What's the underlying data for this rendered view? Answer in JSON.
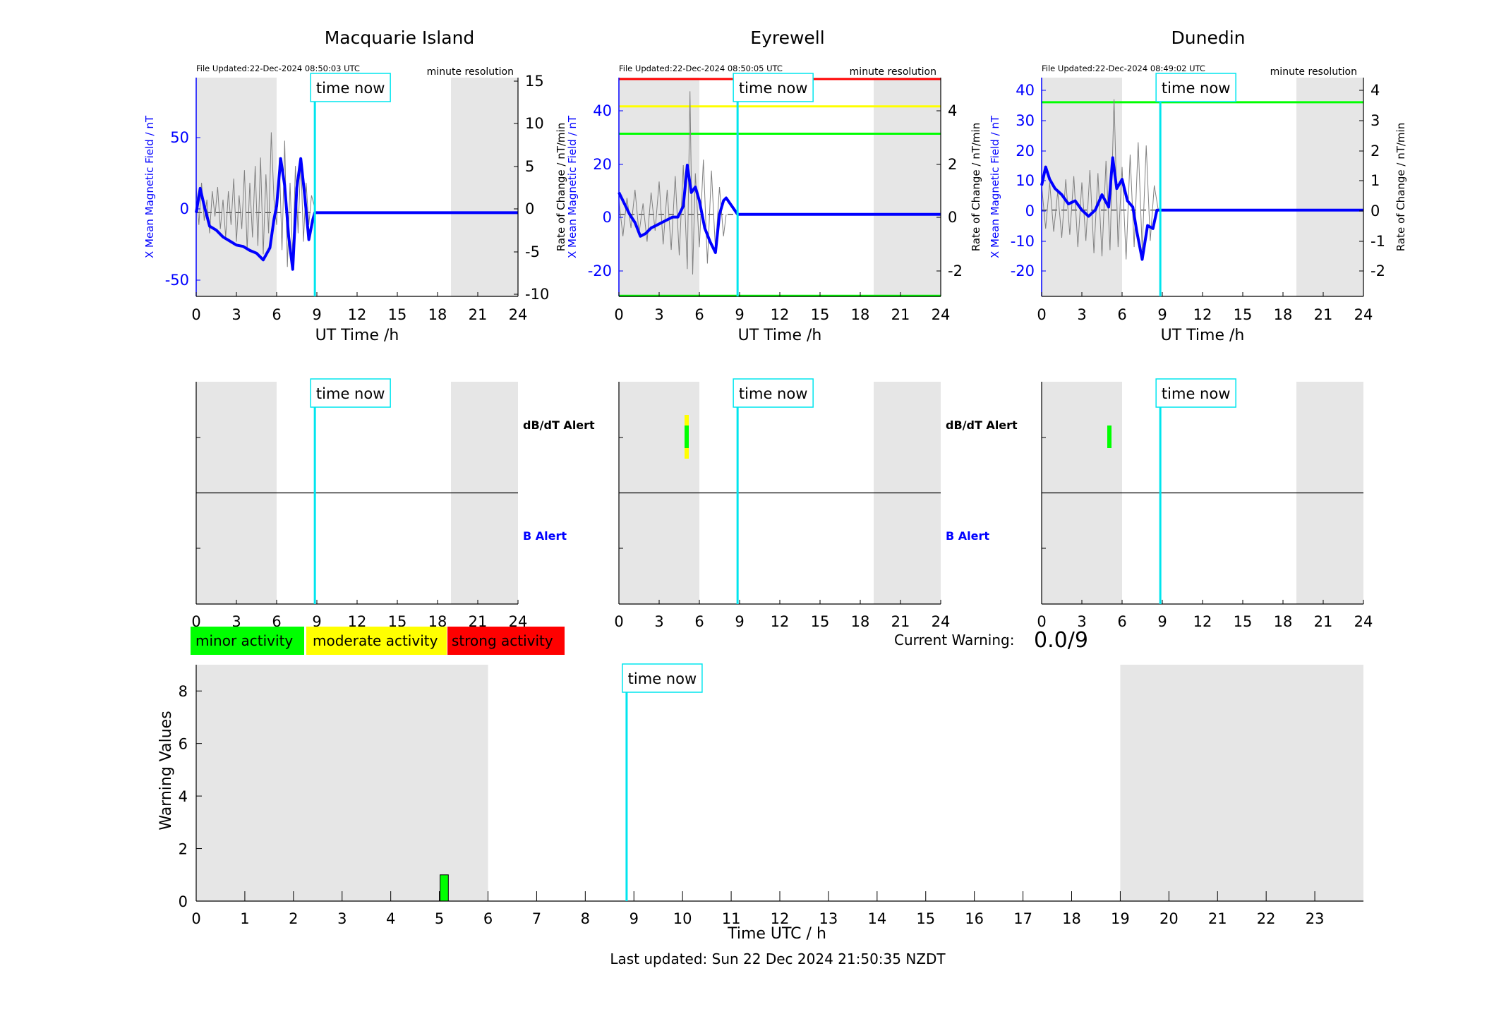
{
  "last_updated": "Last updated: Sun 22 Dec 2024 21:50:35 NZDT",
  "time_now_label": "time now",
  "time_now_hour": 8.85,
  "common": {
    "xlabel_top": "UT Time /h",
    "ylabel_left": "X Mean Magnetic Field / nT",
    "ylabel_right": "Rate of Change / nT/min",
    "resolution": "minute resolution",
    "xticks": [
      "0",
      "3",
      "6",
      "9",
      "12",
      "15",
      "18",
      "21",
      "24"
    ],
    "dbdt_alert": "dB/dT Alert",
    "b_alert": "B Alert",
    "shade_ranges": [
      [
        0,
        6
      ],
      [
        19,
        24
      ]
    ]
  },
  "colors": {
    "field": "#0000ff",
    "rate": "#808080",
    "time_now": "#00e5ee",
    "minor": "#00ff00",
    "moderate": "#ffff00",
    "strong": "#ff0000",
    "shade": "#e6e6e6"
  },
  "stations": [
    {
      "name": "Macquarie Island",
      "file_updated": "File Updated:22-Dec-2024 08:50:03 UTC",
      "left_ticks": [
        "50",
        "0",
        "-50"
      ],
      "right_ticks": [
        "15",
        "10",
        "5",
        "0",
        "-5",
        "-10"
      ]
    },
    {
      "name": "Eyrewell",
      "file_updated": "File Updated:22-Dec-2024 08:50:05 UTC",
      "left_ticks": [
        "40",
        "20",
        "0",
        "-20"
      ],
      "right_ticks": [
        "4",
        "2",
        "0",
        "-2"
      ]
    },
    {
      "name": "Dunedin",
      "file_updated": "File Updated:22-Dec-2024 08:49:02 UTC",
      "left_ticks": [
        "40",
        "30",
        "20",
        "10",
        "0",
        "-10",
        "-20"
      ],
      "right_ticks": [
        "4",
        "3",
        "2",
        "1",
        "0",
        "-1",
        "-2"
      ]
    }
  ],
  "legend": {
    "minor": "minor activity",
    "moderate": "moderate activity",
    "strong": "strong activity"
  },
  "current_warning_label": "Current Warning:",
  "current_warning_value": "0.0/9",
  "chart_data": [
    {
      "type": "line",
      "station": "Macquarie Island",
      "x_range": [
        0,
        24
      ],
      "ylim_left": [
        -62,
        100
      ],
      "ylim_right": [
        -10.5,
        15.5
      ],
      "field_x": [
        0,
        0.3,
        0.6,
        1.0,
        1.5,
        2.0,
        2.5,
        3.0,
        3.5,
        4.0,
        4.5,
        5.0,
        5.5,
        5.8,
        6.0,
        6.3,
        6.6,
        6.9,
        7.2,
        7.5,
        7.8,
        8.1,
        8.4,
        8.7,
        8.85,
        24
      ],
      "field_y": [
        0,
        18,
        5,
        -10,
        -13,
        -18,
        -21,
        -24,
        -25,
        -28,
        -30,
        -35,
        -26,
        -5,
        5,
        40,
        20,
        -18,
        -42,
        18,
        40,
        12,
        -20,
        -5,
        0,
        0
      ],
      "rate_x": [
        0.0,
        0.2,
        0.4,
        0.6,
        0.8,
        1.0,
        1.2,
        1.4,
        1.6,
        1.8,
        2.0,
        2.2,
        2.4,
        2.6,
        2.8,
        3.0,
        3.2,
        3.4,
        3.6,
        3.8,
        4.0,
        4.2,
        4.4,
        4.6,
        4.8,
        5.0,
        5.2,
        5.4,
        5.6,
        5.8,
        6.0,
        6.2,
        6.4,
        6.6,
        6.8,
        7.0,
        7.2,
        7.4,
        7.6,
        7.8,
        8.0,
        8.2,
        8.4,
        8.6,
        8.85
      ],
      "rate_y": [
        2.5,
        -2.0,
        3.0,
        -1.5,
        1.0,
        -3.0,
        2.0,
        -1.0,
        2.5,
        -2.5,
        1.0,
        -3.5,
        2.0,
        -2.0,
        3.5,
        -4.0,
        1.5,
        -2.5,
        4.5,
        -5.0,
        3.0,
        -3.5,
        5.0,
        -4.5,
        6.0,
        -5.5,
        4.0,
        -3.0,
        9.0,
        1.0,
        -2.0,
        6.0,
        -5.0,
        8.0,
        -7.0,
        3.0,
        -6.0,
        5.0,
        -3.0,
        6.0,
        -4.0,
        3.0,
        -2.0,
        1.5,
        0
      ]
    },
    {
      "type": "line",
      "station": "Eyrewell",
      "x_range": [
        0,
        24
      ],
      "ylim_left": [
        -30,
        50
      ],
      "ylim_right": [
        -3,
        5
      ],
      "threshold_lines": [
        {
          "y": 49.5,
          "color": "red"
        },
        {
          "y": 39.5,
          "color": "yellow"
        },
        {
          "y": 29.5,
          "color": "green"
        },
        {
          "y": -29.8,
          "color": "green"
        }
      ],
      "field_x": [
        0,
        0.4,
        0.8,
        1.2,
        1.6,
        2.0,
        2.4,
        2.8,
        3.2,
        3.6,
        4.0,
        4.4,
        4.8,
        5.1,
        5.4,
        5.7,
        6.0,
        6.4,
        6.8,
        7.2,
        7.5,
        7.8,
        8.0,
        8.85,
        24
      ],
      "field_y": [
        8,
        4,
        0,
        -3,
        -8,
        -7,
        -5,
        -4,
        -3,
        -2,
        -1,
        -1,
        3,
        18,
        8,
        10,
        5,
        -5,
        -10,
        -14,
        0,
        5,
        6,
        0,
        0
      ],
      "rate_x": [
        0.0,
        0.3,
        0.6,
        0.9,
        1.2,
        1.5,
        1.8,
        2.1,
        2.4,
        2.7,
        3.0,
        3.3,
        3.6,
        3.9,
        4.2,
        4.5,
        4.8,
        5.1,
        5.3,
        5.5,
        5.7,
        6.0,
        6.3,
        6.6,
        6.9,
        7.2,
        7.5,
        7.8,
        8.0
      ],
      "rate_y": [
        0.5,
        -0.8,
        0.6,
        -0.5,
        0.9,
        -0.7,
        0.4,
        -1.0,
        0.8,
        -0.6,
        1.2,
        -1.1,
        0.9,
        -1.3,
        1.4,
        -1.5,
        1.8,
        -2.0,
        4.5,
        -2.2,
        1.5,
        -1.2,
        2.0,
        -1.8,
        1.6,
        -1.3,
        1.0,
        -0.8,
        0
      ]
    },
    {
      "type": "line",
      "station": "Dunedin",
      "x_range": [
        0,
        24
      ],
      "ylim_left": [
        -28,
        43
      ],
      "ylim_right": [
        -2.8,
        4.3
      ],
      "threshold_lines": [
        {
          "y": 3.5,
          "color": "green",
          "axis": "right"
        }
      ],
      "field_x": [
        0,
        0.3,
        0.6,
        1.0,
        1.5,
        2.0,
        2.5,
        3.0,
        3.5,
        4.0,
        4.5,
        5.0,
        5.3,
        5.6,
        6.0,
        6.4,
        6.8,
        7.1,
        7.5,
        7.9,
        8.3,
        8.6,
        8.85,
        24
      ],
      "field_y": [
        8,
        14,
        10,
        7,
        5,
        2,
        3,
        0,
        -2,
        0,
        5,
        1,
        17,
        7,
        10,
        3,
        1,
        -7,
        -16,
        -5,
        -6,
        0,
        0,
        0
      ],
      "rate_x": [
        0.0,
        0.3,
        0.6,
        0.9,
        1.2,
        1.5,
        1.8,
        2.1,
        2.4,
        2.7,
        3.0,
        3.3,
        3.6,
        3.9,
        4.2,
        4.5,
        4.8,
        5.1,
        5.4,
        5.7,
        6.0,
        6.3,
        6.6,
        6.9,
        7.2,
        7.5,
        7.8,
        8.1,
        8.4,
        8.7
      ],
      "rate_y": [
        0.8,
        -0.6,
        0.9,
        -0.7,
        0.6,
        -0.9,
        1.0,
        -0.8,
        1.1,
        -1.2,
        0.9,
        -1.0,
        1.3,
        -1.4,
        1.2,
        -1.5,
        1.6,
        -1.3,
        3.6,
        -1.2,
        1.4,
        -1.6,
        1.8,
        -1.2,
        2.2,
        -1.3,
        2.1,
        -1.0,
        0.8,
        0
      ]
    },
    {
      "type": "bar",
      "title": "",
      "xlabel": "Time UTC / h",
      "ylabel": "Warning Values",
      "xticks": [
        "0",
        "1",
        "2",
        "3",
        "4",
        "5",
        "6",
        "7",
        "8",
        "9",
        "10",
        "11",
        "12",
        "13",
        "14",
        "15",
        "16",
        "17",
        "18",
        "19",
        "20",
        "21",
        "22",
        "23"
      ],
      "yticks": [
        "0",
        "2",
        "4",
        "6",
        "8"
      ],
      "ylim": [
        0,
        9
      ],
      "x_range": [
        0,
        24
      ],
      "x": [
        5
      ],
      "values": [
        1
      ]
    }
  ]
}
